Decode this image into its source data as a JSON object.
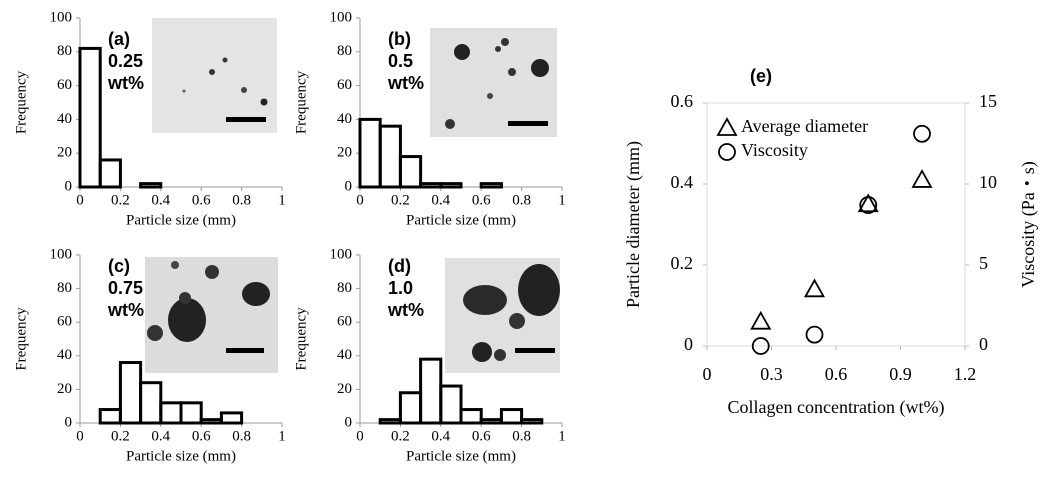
{
  "chart_data": [
    {
      "type": "histogram",
      "label": "(a)",
      "annotation": [
        "0.25",
        "wt%"
      ],
      "bins": [
        0,
        0.1,
        0.2,
        0.3,
        0.4,
        0.5,
        0.6,
        0.7,
        0.8,
        0.9,
        1.0
      ],
      "values": [
        82,
        16,
        0,
        2,
        0,
        0,
        0,
        0,
        0,
        0
      ],
      "xlim": [
        0,
        1
      ],
      "xticks": [
        0,
        0.2,
        0.4,
        0.6,
        0.8,
        1
      ],
      "ylim": [
        0,
        100
      ],
      "yticks": [
        0,
        20,
        40,
        60,
        80,
        100
      ],
      "xlabel": "Particle size (mm)",
      "ylabel": "Frequency"
    },
    {
      "type": "histogram",
      "label": "(b)",
      "annotation": [
        "0.5",
        "wt%"
      ],
      "bins": [
        0,
        0.1,
        0.2,
        0.3,
        0.4,
        0.5,
        0.6,
        0.7,
        0.8,
        0.9,
        1.0
      ],
      "values": [
        40,
        36,
        18,
        2,
        2,
        0,
        2,
        0,
        0,
        0
      ],
      "xlim": [
        0,
        1
      ],
      "xticks": [
        0,
        0.2,
        0.4,
        0.6,
        0.8,
        1
      ],
      "ylim": [
        0,
        100
      ],
      "yticks": [
        0,
        20,
        40,
        60,
        80,
        100
      ],
      "xlabel": "Particle size (mm)",
      "ylabel": "Frequency"
    },
    {
      "type": "histogram",
      "label": "(c)",
      "annotation": [
        "0.75",
        "wt%"
      ],
      "bins": [
        0,
        0.1,
        0.2,
        0.3,
        0.4,
        0.5,
        0.6,
        0.7,
        0.8,
        0.9,
        1.0
      ],
      "values": [
        0,
        8,
        36,
        24,
        12,
        12,
        2,
        6,
        0,
        0
      ],
      "xlim": [
        0,
        1
      ],
      "xticks": [
        0,
        0.2,
        0.4,
        0.6,
        0.8,
        1
      ],
      "ylim": [
        0,
        100
      ],
      "yticks": [
        0,
        20,
        40,
        60,
        80,
        100
      ],
      "xlabel": "Particle size (mm)",
      "ylabel": "Frequency"
    },
    {
      "type": "histogram",
      "label": "(d)",
      "annotation": [
        "1.0",
        "wt%"
      ],
      "bins": [
        0,
        0.1,
        0.2,
        0.3,
        0.4,
        0.5,
        0.6,
        0.7,
        0.8,
        0.9,
        1.0
      ],
      "values": [
        0,
        2,
        18,
        38,
        22,
        8,
        2,
        8,
        2,
        0
      ],
      "xlim": [
        0,
        1
      ],
      "xticks": [
        0,
        0.2,
        0.4,
        0.6,
        0.8,
        1
      ],
      "ylim": [
        0,
        100
      ],
      "yticks": [
        0,
        20,
        40,
        60,
        80,
        100
      ],
      "xlabel": "Particle size (mm)",
      "ylabel": "Frequency"
    },
    {
      "type": "scatter",
      "label": "(e)",
      "x": [
        0.25,
        0.5,
        0.75,
        1.0
      ],
      "series": [
        {
          "name": "Average diameter",
          "marker": "triangle",
          "values": [
            0.06,
            0.14,
            0.35,
            0.41
          ]
        },
        {
          "name": "Viscosity",
          "marker": "circle",
          "axis": "y2",
          "values": [
            0,
            0.7,
            8.7,
            13.1
          ]
        }
      ],
      "xlim": [
        0,
        1.2
      ],
      "xticks": [
        0,
        0.3,
        0.6,
        0.9,
        1.2
      ],
      "ylim": [
        0,
        0.6
      ],
      "yticks": [
        0,
        0.2,
        0.4,
        0.6
      ],
      "y2lim": [
        0,
        15
      ],
      "y2ticks": [
        0,
        5,
        10,
        15
      ],
      "xlabel": "Collagen concentration (wt%)",
      "ylabel": "Particle diameter (mm)",
      "y2label": "Viscosity (Pa・s)",
      "legend": "upper left"
    }
  ]
}
